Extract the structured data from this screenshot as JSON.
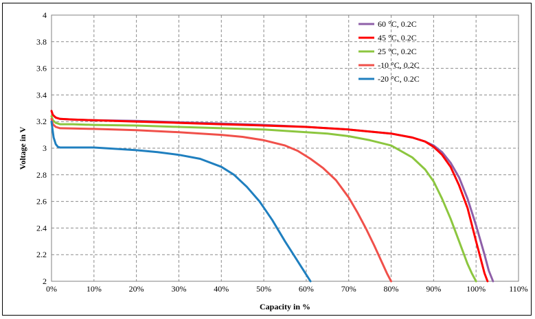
{
  "chart_data": {
    "type": "line",
    "title": "",
    "xlabel": "Capacity  in %",
    "ylabel": "Voltage  in V",
    "xlim": [
      0,
      110
    ],
    "ylim": [
      2,
      4
    ],
    "x_ticks": [
      0,
      10,
      20,
      30,
      40,
      50,
      60,
      70,
      80,
      90,
      100,
      110
    ],
    "x_tick_labels": [
      "0%",
      "10%",
      "20%",
      "30%",
      "40%",
      "50%",
      "60%",
      "70%",
      "80%",
      "90%",
      "100%",
      "110%"
    ],
    "y_ticks": [
      2,
      2.2,
      2.4,
      2.6,
      2.8,
      3,
      3.2,
      3.4,
      3.6,
      3.8,
      4
    ],
    "y_tick_labels": [
      "2",
      "2.2",
      "2.4",
      "2.6",
      "2.8",
      "3",
      "3.2",
      "3.4",
      "3.6",
      "3.8",
      "4"
    ],
    "grid": true,
    "legend_position": "top-right",
    "series": [
      {
        "name": "60 °C, 0.2C",
        "color": "#8e5fa8",
        "x": [
          0,
          0.3,
          1,
          2,
          5,
          10,
          20,
          30,
          40,
          50,
          60,
          70,
          80,
          85,
          88,
          90,
          92,
          94,
          96,
          98,
          100,
          102,
          103,
          104
        ],
        "y": [
          3.28,
          3.25,
          3.23,
          3.22,
          3.215,
          3.21,
          3.205,
          3.195,
          3.185,
          3.175,
          3.16,
          3.14,
          3.11,
          3.08,
          3.05,
          3.02,
          2.97,
          2.89,
          2.78,
          2.62,
          2.42,
          2.2,
          2.08,
          2.0
        ]
      },
      {
        "name": "45 °C, 0.2C",
        "color": "#ff0000",
        "x": [
          0,
          0.3,
          1,
          2,
          5,
          10,
          20,
          30,
          40,
          50,
          60,
          70,
          80,
          85,
          88,
          90,
          92,
          94,
          96,
          98,
          100,
          101,
          102,
          102.7
        ],
        "y": [
          3.28,
          3.25,
          3.23,
          3.22,
          3.215,
          3.21,
          3.2,
          3.19,
          3.18,
          3.17,
          3.16,
          3.14,
          3.11,
          3.08,
          3.05,
          3.01,
          2.95,
          2.86,
          2.72,
          2.55,
          2.3,
          2.18,
          2.06,
          2.0
        ]
      },
      {
        "name": "25 °C, 0.2C",
        "color": "#8cc63f",
        "x": [
          0,
          0.3,
          1,
          2,
          5,
          10,
          20,
          30,
          40,
          50,
          60,
          65,
          70,
          75,
          80,
          85,
          88,
          90,
          92,
          94,
          96,
          98,
          99,
          100
        ],
        "y": [
          3.24,
          3.21,
          3.19,
          3.18,
          3.18,
          3.175,
          3.17,
          3.16,
          3.15,
          3.14,
          3.12,
          3.11,
          3.09,
          3.06,
          3.02,
          2.93,
          2.84,
          2.75,
          2.62,
          2.47,
          2.3,
          2.13,
          2.06,
          2.0
        ]
      },
      {
        "name": "-10 °C, 0.2C",
        "color": "#f0504a",
        "x": [
          0,
          0.3,
          1,
          2,
          5,
          10,
          20,
          30,
          40,
          45,
          50,
          55,
          58,
          61,
          64,
          67,
          70,
          72,
          74,
          76,
          78,
          79,
          80
        ],
        "y": [
          3.22,
          3.18,
          3.16,
          3.15,
          3.148,
          3.145,
          3.135,
          3.12,
          3.1,
          3.085,
          3.06,
          3.02,
          2.98,
          2.92,
          2.85,
          2.76,
          2.63,
          2.52,
          2.4,
          2.27,
          2.13,
          2.06,
          2.0
        ]
      },
      {
        "name": "-20 °C, 0.2C",
        "color": "#1f7fbf",
        "x": [
          0,
          0.2,
          0.5,
          1,
          1.5,
          2,
          5,
          10,
          20,
          25,
          30,
          35,
          40,
          43,
          46,
          49,
          52,
          55,
          57,
          59,
          60,
          61
        ],
        "y": [
          3.2,
          3.15,
          3.08,
          3.03,
          3.01,
          3.005,
          3.005,
          3.005,
          2.985,
          2.97,
          2.95,
          2.92,
          2.86,
          2.8,
          2.71,
          2.6,
          2.46,
          2.3,
          2.2,
          2.1,
          2.05,
          2.0
        ]
      }
    ]
  }
}
